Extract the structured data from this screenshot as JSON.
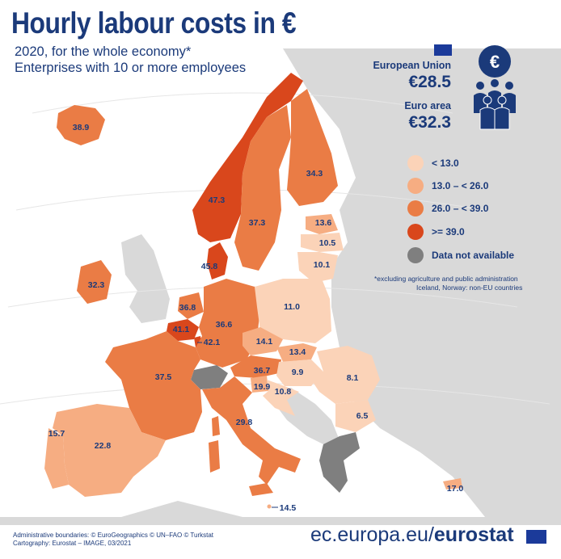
{
  "title": "Hourly labour costs in €",
  "subtitle_line1": "2020, for the whole economy*",
  "subtitle_line2": "Enterprises with 10 or more employees",
  "eu": {
    "label": "European Union",
    "value": "€28.5"
  },
  "euro_area": {
    "label": "Euro area",
    "value": "€32.3"
  },
  "legend": [
    {
      "label": "< 13.0",
      "color": "#fbd3b8"
    },
    {
      "label": "13.0 – < 26.0",
      "color": "#f6ad82"
    },
    {
      "label": "26.0 – < 39.0",
      "color": "#ea7c45"
    },
    {
      "label": ">= 39.0",
      "color": "#d9471c"
    },
    {
      "label": "Data not available",
      "color": "#7f7f7f"
    }
  ],
  "note_line1": "*excluding agriculture and public administration",
  "note_line2": "Iceland, Norway: non-EU countries",
  "countries": [
    {
      "name": "Iceland",
      "value": "38.9"
    },
    {
      "name": "Norway",
      "value": "47.3"
    },
    {
      "name": "Sweden",
      "value": "37.3"
    },
    {
      "name": "Finland",
      "value": "34.3"
    },
    {
      "name": "Estonia",
      "value": "13.6"
    },
    {
      "name": "Latvia",
      "value": "10.5"
    },
    {
      "name": "Lithuania",
      "value": "10.1"
    },
    {
      "name": "Denmark",
      "value": "45.8"
    },
    {
      "name": "Ireland",
      "value": "32.3"
    },
    {
      "name": "Netherlands",
      "value": "36.8"
    },
    {
      "name": "Belgium",
      "value": "41.1"
    },
    {
      "name": "Luxembourg",
      "value": "42.1"
    },
    {
      "name": "Germany",
      "value": "36.6"
    },
    {
      "name": "Poland",
      "value": "11.0"
    },
    {
      "name": "Czechia",
      "value": "14.1"
    },
    {
      "name": "Slovakia",
      "value": "13.4"
    },
    {
      "name": "Austria",
      "value": "36.7"
    },
    {
      "name": "Hungary",
      "value": "9.9"
    },
    {
      "name": "Romania",
      "value": "8.1"
    },
    {
      "name": "France",
      "value": "37.5"
    },
    {
      "name": "Slovenia",
      "value": "19.9"
    },
    {
      "name": "Croatia",
      "value": "10.8"
    },
    {
      "name": "Bulgaria",
      "value": "6.5"
    },
    {
      "name": "Portugal",
      "value": "15.7"
    },
    {
      "name": "Spain",
      "value": "22.8"
    },
    {
      "name": "Italy",
      "value": "29.8"
    },
    {
      "name": "Malta",
      "value": "14.5"
    },
    {
      "name": "Cyprus",
      "value": "17.0"
    }
  ],
  "no_data": [
    "Switzerland",
    "Greece"
  ],
  "credits_line1": "Administrative boundaries: © EuroGeographics © UN–FAO © Turkstat",
  "credits_line2": "Cartography: Eurostat – IMAGE, 03/2021",
  "site_regular": "ec.europa.eu/",
  "site_bold": "eurostat"
}
